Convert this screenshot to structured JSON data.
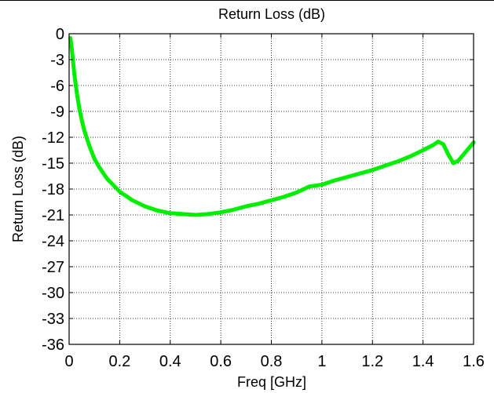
{
  "chart_data": {
    "type": "line",
    "title": "Return Loss (dB)",
    "xlabel": "Freq [GHz]",
    "ylabel": "Return Loss (dB)",
    "xlim": [
      0,
      1.6
    ],
    "ylim": [
      -36,
      0
    ],
    "xticks": [
      0,
      0.2,
      0.4,
      0.6,
      0.8,
      1,
      1.2,
      1.4,
      1.6
    ],
    "xtick_labels": [
      "0",
      "0.2",
      "0.4",
      "0.6",
      "0.8",
      "1",
      "1.2",
      "1.4",
      "1.6"
    ],
    "yticks": [
      0,
      -3,
      -6,
      -9,
      -12,
      -15,
      -18,
      -21,
      -24,
      -27,
      -30,
      -33,
      -36
    ],
    "ytick_labels": [
      "0",
      "-3",
      "-6",
      "-9",
      "-12",
      "-15",
      "-18",
      "-21",
      "-24",
      "-27",
      "-30",
      "-33",
      "-36"
    ],
    "grid": true,
    "series": [
      {
        "color": "#00ee00",
        "x": [
          0.005,
          0.01,
          0.015,
          0.02,
          0.03,
          0.04,
          0.05,
          0.06,
          0.08,
          0.1,
          0.12,
          0.15,
          0.2,
          0.25,
          0.3,
          0.35,
          0.4,
          0.45,
          0.5,
          0.55,
          0.6,
          0.65,
          0.7,
          0.75,
          0.8,
          0.85,
          0.9,
          0.95,
          1.0,
          1.05,
          1.1,
          1.15,
          1.2,
          1.25,
          1.3,
          1.35,
          1.4,
          1.44,
          1.46,
          1.48,
          1.5,
          1.52,
          1.54,
          1.56,
          1.58,
          1.6
        ],
        "y": [
          -0.5,
          -1.6,
          -3.0,
          -4.5,
          -6.8,
          -8.6,
          -10.0,
          -11.2,
          -13.0,
          -14.5,
          -15.5,
          -16.8,
          -18.3,
          -19.3,
          -20.0,
          -20.5,
          -20.8,
          -20.9,
          -21.0,
          -20.9,
          -20.7,
          -20.4,
          -20.0,
          -19.7,
          -19.3,
          -18.9,
          -18.4,
          -17.7,
          -17.5,
          -17.0,
          -16.6,
          -16.2,
          -15.8,
          -15.3,
          -14.8,
          -14.2,
          -13.5,
          -12.9,
          -12.5,
          -12.8,
          -14.0,
          -15.0,
          -14.7,
          -14.0,
          -13.3,
          -12.6
        ]
      }
    ]
  }
}
